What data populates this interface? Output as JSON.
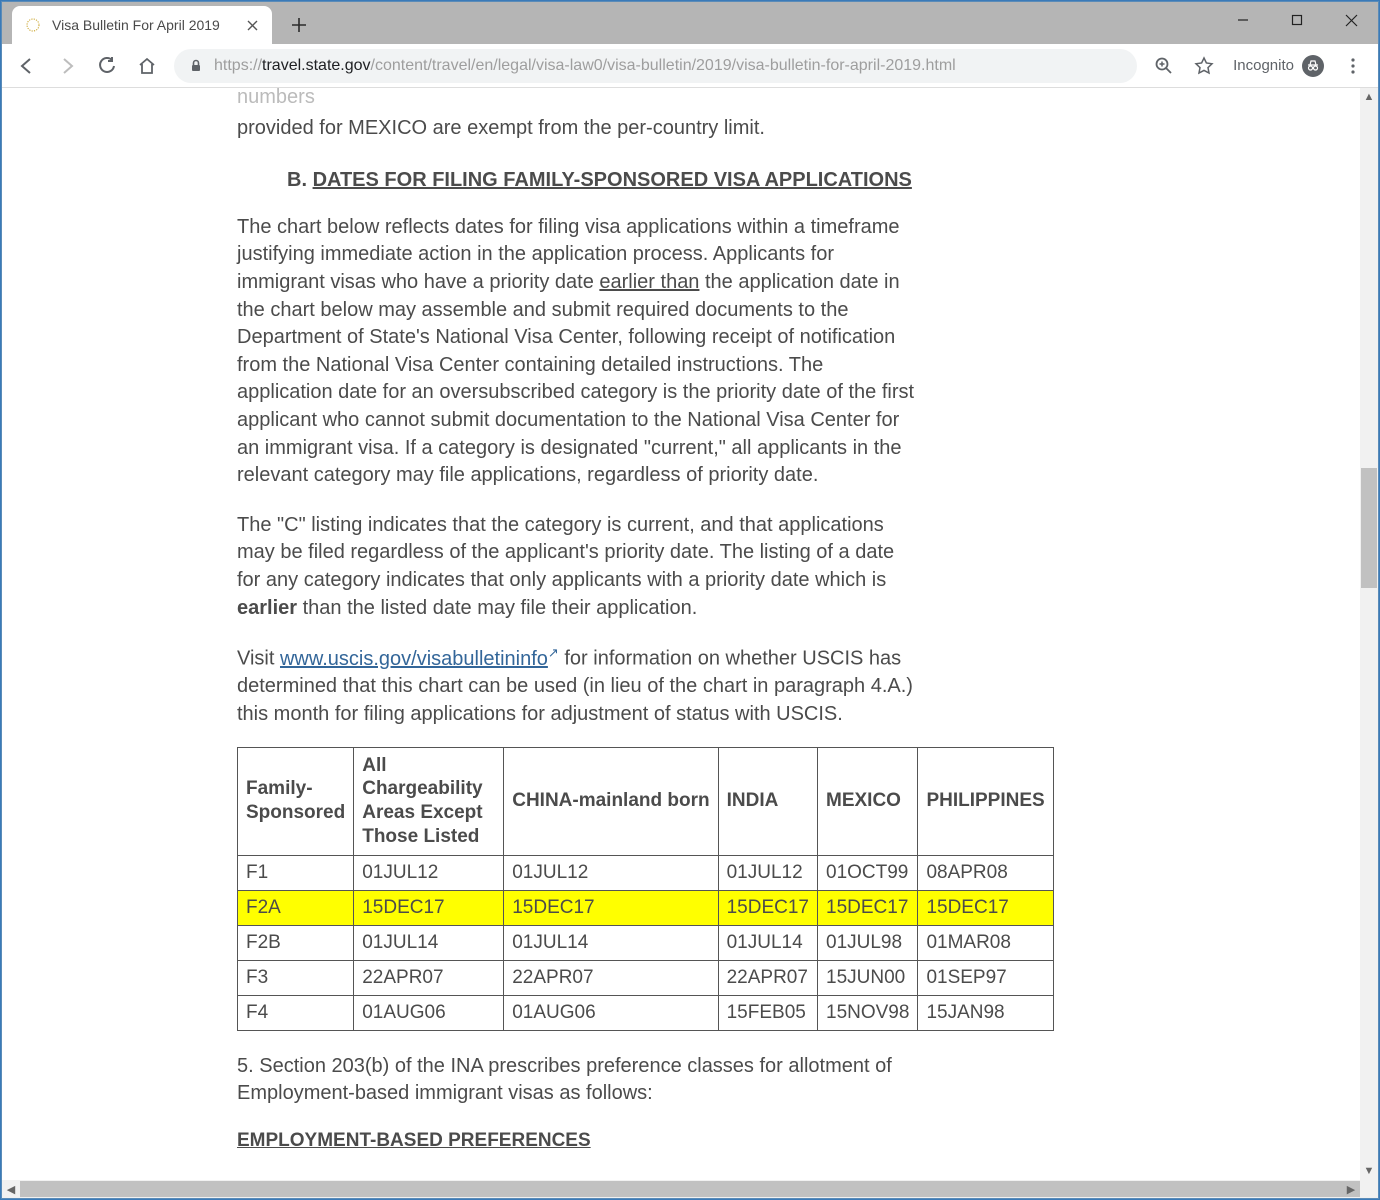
{
  "window": {
    "tab_title": "Visa Bulletin For April 2019",
    "url_prefix": "https://",
    "url_host": "travel.state.gov",
    "url_path": "/content/travel/en/legal/visa-law0/visa-bulletin/2019/visa-bulletin-for-april-2019.html",
    "incognito_label": "Incognito"
  },
  "content": {
    "top_fragment": "provided for MEXICO are exempt from the per-country limit.",
    "heading_prefix": "B.  ",
    "heading": "DATES FOR FILING FAMILY-SPONSORED VISA APPLICATIONS",
    "para1a": "The chart below reflects dates for filing visa applications within a timeframe justifying immediate action in the application process. Applicants for immigrant visas who have a priority date ",
    "para1_u": "earlier than",
    "para1b": " the application date in the chart below may assemble and submit required documents to the Department of State's National Visa Center, following receipt of notification from the National Visa Center containing detailed instructions. The application date for an oversubscribed category is the priority date of the first applicant who cannot submit documentation to the National Visa Center for an immigrant visa. If a category is designated \"current,\" all applicants in the relevant category may file applications, regardless of priority date.",
    "para2a": "The \"C\" listing indicates that the category is current, and that applications may be filed regardless of the applicant's priority date. The listing of a date for any category indicates that only applicants with a priority date which is ",
    "para2_b": "earlier",
    "para2b": " than the listed date may file their application.",
    "para3a": "Visit ",
    "para3_link": "www.uscis.gov/visabulletininfo",
    "para3b": " for information on whether USCIS has determined that this chart can be used (in lieu of the chart in paragraph 4.A.) this month for filing applications for adjustment of status with USCIS.",
    "para5": "5.  Section 203(b) of the INA prescribes preference classes for allotment of Employment-based immigrant visas as follows:",
    "emp_heading": "EMPLOYMENT-BASED PREFERENCES"
  },
  "table": {
    "columns": [
      "Family-Sponsored",
      "All Chargeability Areas Except Those Listed",
      "CHINA-mainland born",
      "INDIA",
      "MEXICO",
      "PHILIPPINES"
    ],
    "rows": [
      {
        "cells": [
          "F1",
          "01JUL12",
          "01JUL12",
          "01JUL12",
          "01OCT99",
          "08APR08"
        ],
        "highlight": false
      },
      {
        "cells": [
          "F2A",
          "15DEC17",
          "15DEC17",
          "15DEC17",
          "15DEC17",
          "15DEC17"
        ],
        "highlight": true
      },
      {
        "cells": [
          "F2B",
          "01JUL14",
          "01JUL14",
          "01JUL14",
          "01JUL98",
          "01MAR08"
        ],
        "highlight": false
      },
      {
        "cells": [
          "F3",
          "22APR07",
          "22APR07",
          "22APR07",
          "15JUN00",
          "01SEP97"
        ],
        "highlight": false
      },
      {
        "cells": [
          "F4",
          "01AUG06",
          "01AUG06",
          "15FEB05",
          "15NOV98",
          "15JAN98"
        ],
        "highlight": false
      }
    ],
    "highlight_color": "#ffff00",
    "border_color": "#555555"
  }
}
